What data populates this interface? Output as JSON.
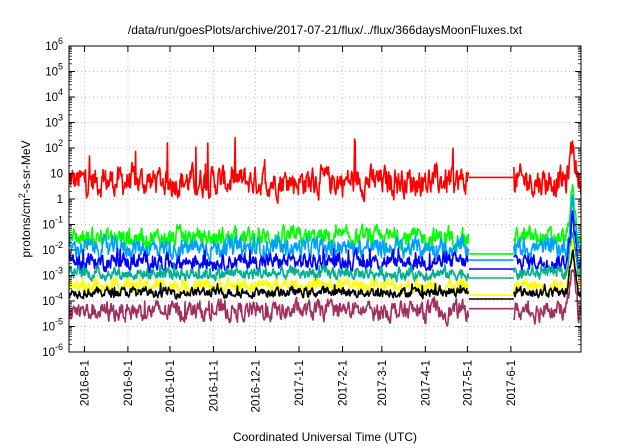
{
  "chart_data": {
    "type": "line",
    "title": "/data/run/goesPlots/archive/2017-07-21/flux/../flux/366daysMoonFluxes.txt",
    "xlabel": "Coordinated Universal Time (UTC)",
    "ylabel_main": "protons/cm",
    "ylabel_sup": "2",
    "ylabel_rest": "-s-sr-MeV",
    "y_scale": "log",
    "ylim": [
      1e-06,
      1000000.0
    ],
    "y_ticks": [
      {
        "base": "10",
        "exp": "-6",
        "value": 1e-06
      },
      {
        "base": "10",
        "exp": "-5",
        "value": 1e-05
      },
      {
        "base": "10",
        "exp": "-4",
        "value": 0.0001
      },
      {
        "base": "10",
        "exp": "-3",
        "value": 0.001
      },
      {
        "base": "10",
        "exp": "-2",
        "value": 0.01
      },
      {
        "base": "10",
        "exp": "-1",
        "value": 0.1
      },
      {
        "base": "1",
        "exp": "",
        "value": 1
      },
      {
        "base": "10",
        "exp": "",
        "value": 10
      },
      {
        "base": "10",
        "exp": "2",
        "value": 100.0
      },
      {
        "base": "10",
        "exp": "3",
        "value": 1000.0
      },
      {
        "base": "10",
        "exp": "4",
        "value": 10000.0
      },
      {
        "base": "10",
        "exp": "5",
        "value": 100000.0
      },
      {
        "base": "10",
        "exp": "6",
        "value": 1000000.0
      }
    ],
    "xlim": [
      "2016-07-21",
      "2017-07-21"
    ],
    "x_ticks": [
      {
        "label": "2016-8-1",
        "date": "2016-08-01"
      },
      {
        "label": "2016-9-1",
        "date": "2016-09-01"
      },
      {
        "label": "2016-10-1",
        "date": "2016-10-01"
      },
      {
        "label": "2016-11-1",
        "date": "2016-11-01"
      },
      {
        "label": "2016-12-1",
        "date": "2016-12-01"
      },
      {
        "label": "2017-1-1",
        "date": "2017-01-01"
      },
      {
        "label": "2017-2-1",
        "date": "2017-02-01"
      },
      {
        "label": "2017-3-1",
        "date": "2017-03-01"
      },
      {
        "label": "2017-4-1",
        "date": "2017-04-01"
      },
      {
        "label": "2017-5-1",
        "date": "2017-05-01"
      },
      {
        "label": "2017-6-1",
        "date": "2017-06-01"
      }
    ],
    "grid": true,
    "series": [
      {
        "color": "#ff0000",
        "typical": 5,
        "spread_decades": 0.45,
        "spike_max": 300,
        "gap_level": 7
      },
      {
        "color": "#00ff00",
        "typical": 0.03,
        "spread_decades": 0.3,
        "spike_max": 0.1,
        "gap_level": 0.007
      },
      {
        "color": "#00a0ff",
        "typical": 0.012,
        "spread_decades": 0.3,
        "spike_max": 0.03,
        "gap_level": 0.004
      },
      {
        "color": "#0000ff",
        "typical": 0.0035,
        "spread_decades": 0.25,
        "spike_max": 0.012,
        "gap_level": 0.0018
      },
      {
        "color": "#00b090",
        "typical": 0.0012,
        "spread_decades": 0.2,
        "spike_max": 0.003,
        "gap_level": 0.0008
      },
      {
        "color": "#ffff00",
        "typical": 0.0004,
        "spread_decades": 0.2,
        "spike_max": 0.0008,
        "gap_level": 0.00017
      },
      {
        "color": "#000000",
        "typical": 0.00022,
        "spread_decades": 0.15,
        "spike_max": 0.0005,
        "gap_level": 0.00012
      },
      {
        "color": "#a03060",
        "typical": 4e-05,
        "spread_decades": 0.3,
        "spike_max": 0.0001,
        "gap_level": 5e-05
      }
    ],
    "data_gap": [
      "2017-05-02",
      "2017-06-03"
    ],
    "late_event_date": "2017-07-15"
  }
}
